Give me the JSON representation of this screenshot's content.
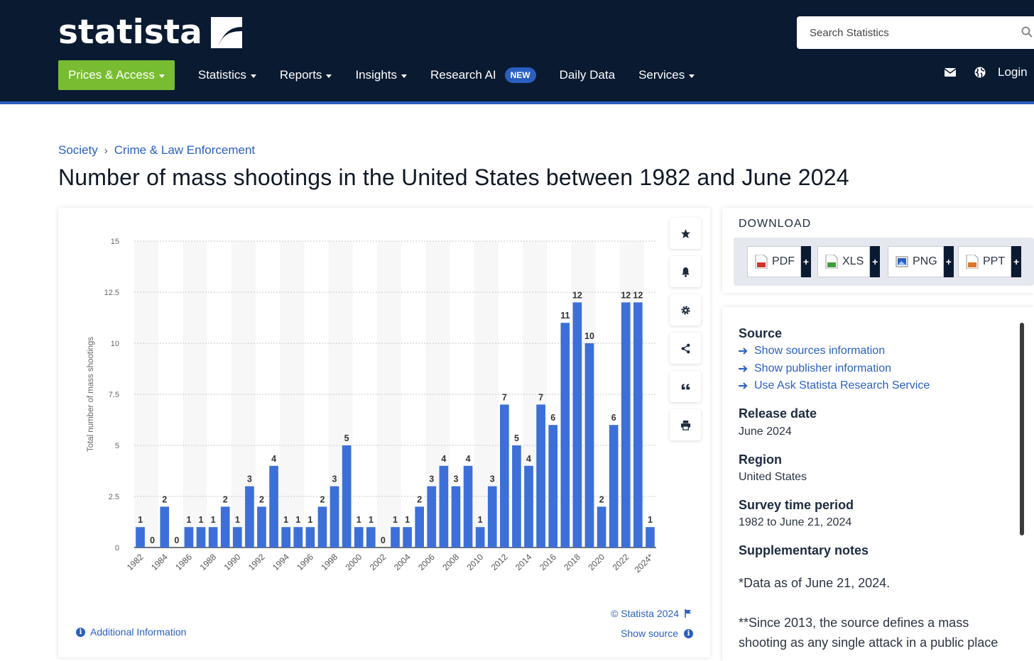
{
  "header": {
    "logo_text": "statista",
    "search_placeholder": "Search Statistics",
    "nav": [
      {
        "label": "Prices & Access"
      },
      {
        "label": "Statistics"
      },
      {
        "label": "Reports"
      },
      {
        "label": "Insights"
      },
      {
        "label": "Research AI",
        "badge": "NEW"
      },
      {
        "label": "Daily Data"
      },
      {
        "label": "Services"
      }
    ],
    "login": "Login",
    "brand_color": "#0a1a31",
    "accent_color": "#78bd31"
  },
  "breadcrumb": [
    "Society",
    "Crime & Law Enforcement"
  ],
  "page_title": "Number of mass shootings in the United States between 1982 and June 2024",
  "chart_panel": {
    "copyright": "© Statista 2024",
    "show_source": "Show source",
    "additional_info": "Additional Information"
  },
  "chart_data": {
    "type": "bar",
    "categories": [
      "1982",
      "1983",
      "1984",
      "1985",
      "1986",
      "1987",
      "1988",
      "1989",
      "1990",
      "1991",
      "1992",
      "1993",
      "1994",
      "1995",
      "1996",
      "1997",
      "1998",
      "1999",
      "2000",
      "2001",
      "2002",
      "2003",
      "2004",
      "2005",
      "2006",
      "2007",
      "2008",
      "2009",
      "2010",
      "2011",
      "2012",
      "2013",
      "2014",
      "2015",
      "2016",
      "2017",
      "2018",
      "2019",
      "2020",
      "2021",
      "2022",
      "2023",
      "2024*"
    ],
    "tick_labels": [
      "1982",
      "1984",
      "1986",
      "1988",
      "1990",
      "1992",
      "1994",
      "1996",
      "1998",
      "2000",
      "2002",
      "2004",
      "2006",
      "2008",
      "2010",
      "2012",
      "2014",
      "2016",
      "2018",
      "2020",
      "2022",
      "2024*"
    ],
    "values": [
      1,
      0,
      2,
      0,
      1,
      1,
      1,
      2,
      1,
      3,
      2,
      4,
      1,
      1,
      1,
      2,
      3,
      5,
      1,
      1,
      0,
      1,
      1,
      2,
      3,
      4,
      3,
      4,
      1,
      3,
      7,
      5,
      4,
      7,
      6,
      11,
      12,
      10,
      2,
      6,
      12,
      12,
      1
    ],
    "ylabel": "Total number of mass shootings",
    "ylim": [
      0,
      15
    ],
    "yticks": [
      "0",
      "2.5",
      "5",
      "7.5",
      "10",
      "12.5",
      "15"
    ],
    "bar_color": "#3d6fd8",
    "grid": true
  },
  "download": {
    "title": "DOWNLOAD",
    "formats": [
      {
        "label": "PDF",
        "color": "#d1342f"
      },
      {
        "label": "XLS",
        "color": "#3f9d3b"
      },
      {
        "label": "PNG",
        "color": "#2a5fc1"
      },
      {
        "label": "PPT",
        "color": "#e0762b"
      }
    ],
    "plus": "+"
  },
  "details": {
    "source_heading": "Source",
    "links": [
      "Show sources information",
      "Show publisher information",
      "Use Ask Statista Research Service"
    ],
    "release_heading": "Release date",
    "release_value": "June 2024",
    "region_heading": "Region",
    "region_value": "United States",
    "period_heading": "Survey time period",
    "period_value": "1982 to June 21, 2024",
    "notes_heading": "Supplementary notes",
    "note1": "*Data as of June 21, 2024.",
    "note2": "**Since 2013, the source defines a mass",
    "note3": "shooting as any single attack in a public place"
  }
}
